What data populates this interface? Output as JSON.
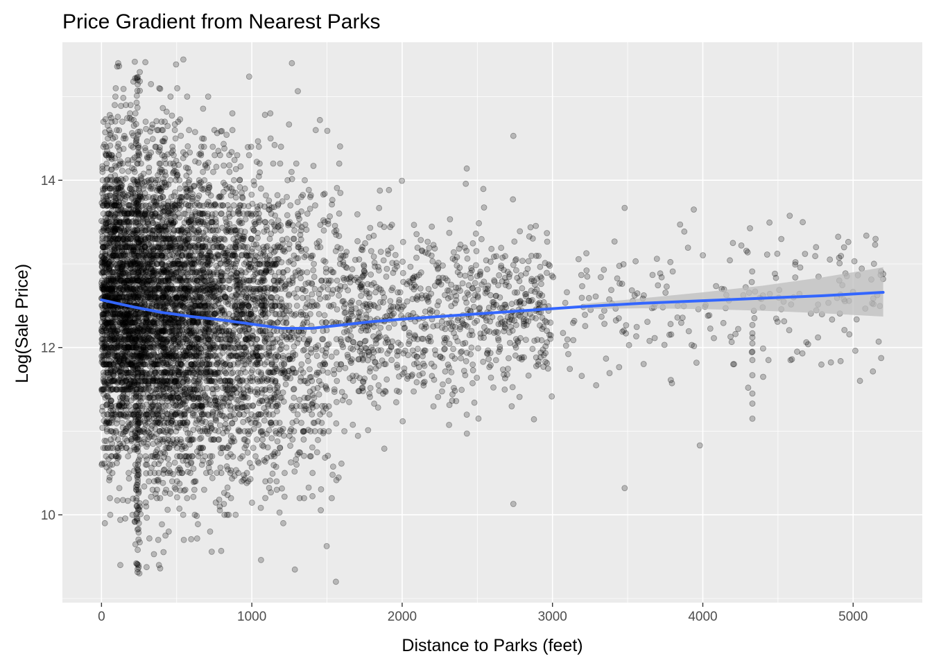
{
  "chart_data": {
    "type": "scatter",
    "title": "Price Gradient from Nearest Parks",
    "xlabel": "Distance to Parks (feet)",
    "ylabel": "Log(Sale Price)",
    "xlim": [
      -260,
      5460
    ],
    "ylim": [
      8.95,
      15.65
    ],
    "x_ticks": [
      0,
      1000,
      2000,
      3000,
      4000,
      5000
    ],
    "x_tick_labels": [
      "0",
      "1000",
      "2000",
      "3000",
      "4000",
      "5000"
    ],
    "y_ticks": [
      10,
      12,
      14
    ],
    "y_tick_labels": [
      "10",
      "12",
      "14"
    ],
    "grid": true,
    "legend": "none",
    "colors": {
      "panel": "#ebebeb",
      "grid": "#ffffff",
      "points": "#000000",
      "smooth": "#3366ff",
      "ribbon": "#bdbdbd"
    },
    "smooth_line": {
      "x": [
        0,
        200,
        400,
        600,
        800,
        1000,
        1200,
        1400,
        1600,
        1800,
        2000,
        2400,
        2800,
        3200,
        3600,
        4000,
        4400,
        4800,
        5200
      ],
      "y": [
        12.57,
        12.49,
        12.42,
        12.37,
        12.33,
        12.28,
        12.23,
        12.23,
        12.27,
        12.31,
        12.34,
        12.39,
        12.44,
        12.49,
        12.53,
        12.56,
        12.59,
        12.62,
        12.66
      ]
    },
    "ribbon": {
      "x": [
        3200,
        3600,
        4000,
        4400,
        4800,
        5200
      ],
      "lower": [
        12.46,
        12.47,
        12.46,
        12.44,
        12.41,
        12.37
      ],
      "upper": [
        12.52,
        12.59,
        12.66,
        12.74,
        12.84,
        12.96
      ]
    },
    "highlighted_points": [
      {
        "x": 3480,
        "y": 13.67
      },
      {
        "x": 3940,
        "y": 13.65
      },
      {
        "x": 2740,
        "y": 14.53
      },
      {
        "x": 2430,
        "y": 14.14
      },
      {
        "x": 3480,
        "y": 10.32
      },
      {
        "x": 2740,
        "y": 10.13
      },
      {
        "x": 3980,
        "y": 10.83
      },
      {
        "x": 5200,
        "y": 12.88
      },
      {
        "x": 4680,
        "y": 13.12
      },
      {
        "x": 4200,
        "y": 13.25
      }
    ]
  }
}
